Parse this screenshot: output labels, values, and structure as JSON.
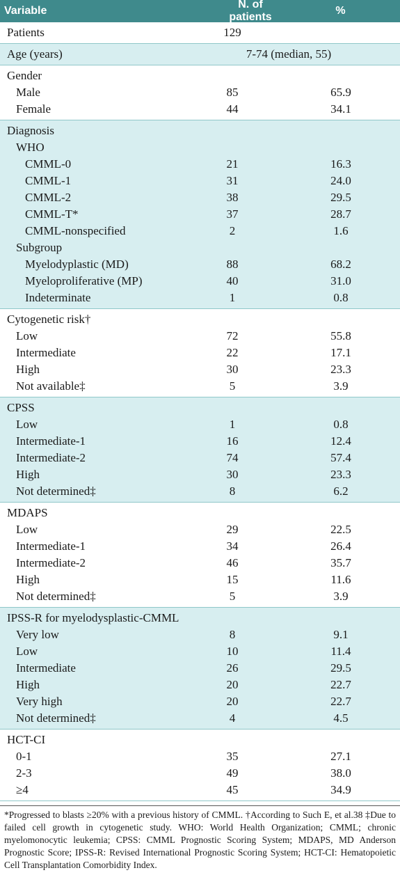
{
  "table": {
    "header": [
      "Variable",
      "N. of patients",
      "%"
    ],
    "sections": [
      {
        "label": "Patients",
        "n": "129"
      },
      {
        "label": "Age (years)",
        "range": "7-74 (median, 55)"
      },
      {
        "label": "Gender",
        "rows": [
          {
            "label": "Male",
            "n": "85",
            "pct": "65.9"
          },
          {
            "label": "Female",
            "n": "44",
            "pct": "34.1"
          }
        ]
      },
      {
        "label": "Diagnosis",
        "rows": [
          {
            "label": "WHO",
            "rows": [
              {
                "label": "CMML-0",
                "n": "21",
                "pct": "16.3"
              },
              {
                "label": "CMML-1",
                "n": "31",
                "pct": "24.0"
              },
              {
                "label": "CMML-2",
                "n": "38",
                "pct": "29.5"
              },
              {
                "label": "CMML-T*",
                "n": "37",
                "pct": "28.7"
              },
              {
                "label": "CMML-nonspecified",
                "n": "2",
                "pct": "1.6"
              }
            ]
          },
          {
            "label": "Subgroup",
            "rows": [
              {
                "label": "Myelodyplastic (MD)",
                "n": "88",
                "pct": "68.2"
              },
              {
                "label": "Myeloproliferative (MP)",
                "n": "40",
                "pct": "31.0"
              },
              {
                "label": "Indeterminate",
                "n": "1",
                "pct": "0.8"
              }
            ]
          }
        ]
      },
      {
        "label": "Cytogenetic risk†",
        "rows": [
          {
            "label": "Low",
            "n": "72",
            "pct": "55.8"
          },
          {
            "label": "Intermediate",
            "n": "22",
            "pct": "17.1"
          },
          {
            "label": "High",
            "n": "30",
            "pct": "23.3"
          },
          {
            "label": "Not available‡",
            "n": "5",
            "pct": "3.9"
          }
        ]
      },
      {
        "label": "CPSS",
        "rows": [
          {
            "label": "Low",
            "n": "1",
            "pct": "0.8"
          },
          {
            "label": "Intermediate-1",
            "n": "16",
            "pct": "12.4"
          },
          {
            "label": "Intermediate-2",
            "n": "74",
            "pct": "57.4"
          },
          {
            "label": "High",
            "n": "30",
            "pct": "23.3"
          },
          {
            "label": "Not determined‡",
            "n": "8",
            "pct": "6.2"
          }
        ]
      },
      {
        "label": "MDAPS",
        "rows": [
          {
            "label": "Low",
            "n": "29",
            "pct": "22.5"
          },
          {
            "label": "Intermediate-1",
            "n": "34",
            "pct": "26.4"
          },
          {
            "label": "Intermediate-2",
            "n": "46",
            "pct": "35.7"
          },
          {
            "label": "High",
            "n": "15",
            "pct": "11.6"
          },
          {
            "label": "Not determined‡",
            "n": "5",
            "pct": "3.9"
          }
        ]
      },
      {
        "label": "IPSS-R for myelodysplastic-CMML",
        "rows": [
          {
            "label": "Very low",
            "n": "8",
            "pct": "9.1"
          },
          {
            "label": "Low",
            "n": "10",
            "pct": "11.4"
          },
          {
            "label": "Intermediate",
            "n": "26",
            "pct": "29.5"
          },
          {
            "label": "High",
            "n": "20",
            "pct": "22.7"
          },
          {
            "label": "Very high",
            "n": "20",
            "pct": "22.7"
          },
          {
            "label": "Not determined‡",
            "n": "4",
            "pct": "4.5"
          }
        ]
      },
      {
        "label": "HCT-CI",
        "rows": [
          {
            "label": "0-1",
            "n": "35",
            "pct": "27.1"
          },
          {
            "label": "2-3",
            "n": "49",
            "pct": "38.0"
          },
          {
            "label": "≥4",
            "n": "45",
            "pct": "34.9"
          }
        ]
      }
    ]
  },
  "footnote": "*Progressed to blasts ≥20% with a previous history of CMML. †According to Such E, et al.38 ‡Due to failed cell growth in cytogenetic study. WHO: World Health Organization; CMML; chronic myelomonocytic leukemia; CPSS: CMML Prognostic Scoring System; MDAPS, MD Anderson Prognostic Score; IPSS-R: Revised International Prognostic Scoring System; HCT-CI: Hematopoietic Cell Transplantation Comorbidity Index."
}
